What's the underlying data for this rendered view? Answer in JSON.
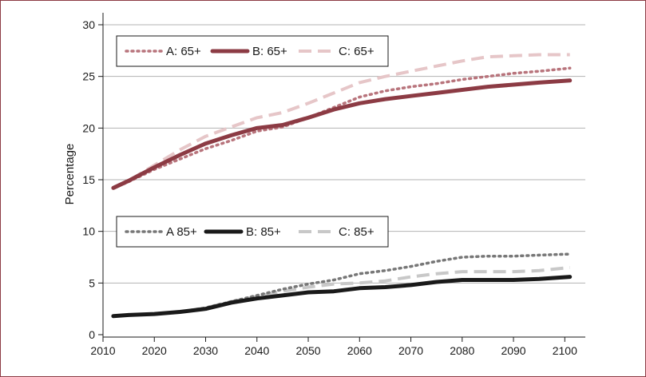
{
  "chart_data": {
    "type": "line",
    "title": "",
    "xlabel": "",
    "ylabel": "Percentage",
    "xlim": [
      2010,
      2104
    ],
    "ylim": [
      0,
      30
    ],
    "x_ticks": [
      2010,
      2020,
      2030,
      2040,
      2050,
      2060,
      2070,
      2080,
      2090,
      2100
    ],
    "y_ticks": [
      0,
      5,
      10,
      15,
      20,
      25,
      30
    ],
    "grid": "horizontal",
    "legends": [
      {
        "placement": "upper-left",
        "entries": [
          "A: 65+",
          "B: 65+",
          "C: 65+"
        ]
      },
      {
        "placement": "middle-left",
        "entries": [
          "A 85+",
          "B: 85+",
          "C: 85+"
        ]
      }
    ],
    "x": [
      2012,
      2015,
      2020,
      2025,
      2030,
      2035,
      2040,
      2045,
      2050,
      2055,
      2060,
      2065,
      2070,
      2075,
      2080,
      2085,
      2090,
      2095,
      2101
    ],
    "series": [
      {
        "name": "A: 65+",
        "color": "#b8747c",
        "style": "dotted",
        "values": [
          14.2,
          14.8,
          16.0,
          17.0,
          18.0,
          18.8,
          19.7,
          20.1,
          21.0,
          22.0,
          23.0,
          23.6,
          24.0,
          24.3,
          24.7,
          25.0,
          25.3,
          25.5,
          25.8
        ]
      },
      {
        "name": "B: 65+",
        "color": "#8c3b44",
        "style": "solid",
        "values": [
          14.2,
          14.9,
          16.2,
          17.4,
          18.5,
          19.3,
          20.0,
          20.3,
          21.0,
          21.8,
          22.4,
          22.8,
          23.1,
          23.4,
          23.7,
          24.0,
          24.2,
          24.4,
          24.6
        ]
      },
      {
        "name": "C: 65+",
        "color": "#e6c6c8",
        "style": "dashed",
        "values": [
          14.2,
          14.9,
          16.4,
          17.9,
          19.2,
          20.1,
          21.0,
          21.5,
          22.4,
          23.4,
          24.4,
          25.0,
          25.5,
          26.0,
          26.5,
          26.9,
          27.0,
          27.1,
          27.1
        ]
      },
      {
        "name": "A 85+",
        "color": "#777777",
        "style": "dotted",
        "values": [
          1.8,
          1.9,
          2.0,
          2.2,
          2.6,
          3.2,
          3.8,
          4.4,
          4.9,
          5.3,
          5.9,
          6.2,
          6.6,
          7.1,
          7.5,
          7.6,
          7.6,
          7.7,
          7.8
        ]
      },
      {
        "name": "B: 85+",
        "color": "#1a1a1a",
        "style": "solid",
        "values": [
          1.8,
          1.9,
          2.0,
          2.2,
          2.5,
          3.1,
          3.5,
          3.8,
          4.1,
          4.2,
          4.5,
          4.6,
          4.8,
          5.1,
          5.3,
          5.3,
          5.3,
          5.4,
          5.6
        ]
      },
      {
        "name": "C: 85+",
        "color": "#c8c8c8",
        "style": "dashed",
        "values": [
          1.8,
          1.9,
          2.0,
          2.2,
          2.6,
          3.2,
          3.7,
          4.2,
          4.6,
          4.9,
          5.0,
          5.2,
          5.6,
          5.9,
          6.1,
          6.1,
          6.1,
          6.2,
          6.5
        ]
      }
    ]
  }
}
